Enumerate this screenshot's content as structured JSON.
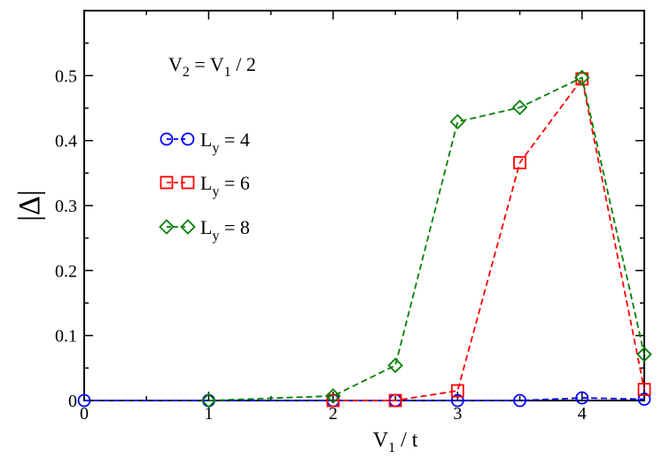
{
  "chart_data": {
    "type": "line",
    "title": "",
    "annotation": {
      "main": "V",
      "sub1": "2",
      "mid": " = V",
      "sub2": "1",
      "tail": " / 2"
    },
    "xlabel": {
      "main": "V",
      "sub": "1",
      "tail": " / t"
    },
    "ylabel": "|Δ|",
    "xlim": [
      0,
      4.5
    ],
    "ylim": [
      0,
      0.6
    ],
    "xticks": [
      0,
      1,
      2,
      3,
      4
    ],
    "xtick_labels": [
      "0",
      "1",
      "2",
      "3",
      "4"
    ],
    "yticks": [
      0,
      0.1,
      0.2,
      0.3,
      0.4,
      0.5
    ],
    "ytick_labels": [
      "0",
      "0.1",
      "0.2",
      "0.3",
      "0.4",
      "0.5"
    ],
    "grid": false,
    "legend_position": "left",
    "series": [
      {
        "legend_main": "L",
        "legend_sub": "y",
        "legend_tail": " = 4",
        "marker": "circle",
        "color": "#0000ff",
        "x": [
          0,
          1,
          2,
          2.5,
          3,
          3.5,
          4,
          4.5
        ],
        "y": [
          0,
          0,
          0,
          0,
          0,
          0,
          0.004,
          0.002
        ]
      },
      {
        "legend_main": "L",
        "legend_sub": "y",
        "legend_tail": " = 6",
        "marker": "square",
        "color": "#ff0000",
        "x": [
          2,
          2.5,
          3,
          3.5,
          4,
          4.5
        ],
        "y": [
          0,
          0,
          0.015,
          0.366,
          0.495,
          0.017
        ]
      },
      {
        "legend_main": "L",
        "legend_sub": "y",
        "legend_tail": " = 8",
        "marker": "diamond",
        "color": "#008000",
        "x": [
          1,
          2,
          2.5,
          3,
          3.5,
          4,
          4.5
        ],
        "y": [
          0,
          0.007,
          0.054,
          0.429,
          0.451,
          0.497,
          0.071
        ]
      }
    ]
  }
}
